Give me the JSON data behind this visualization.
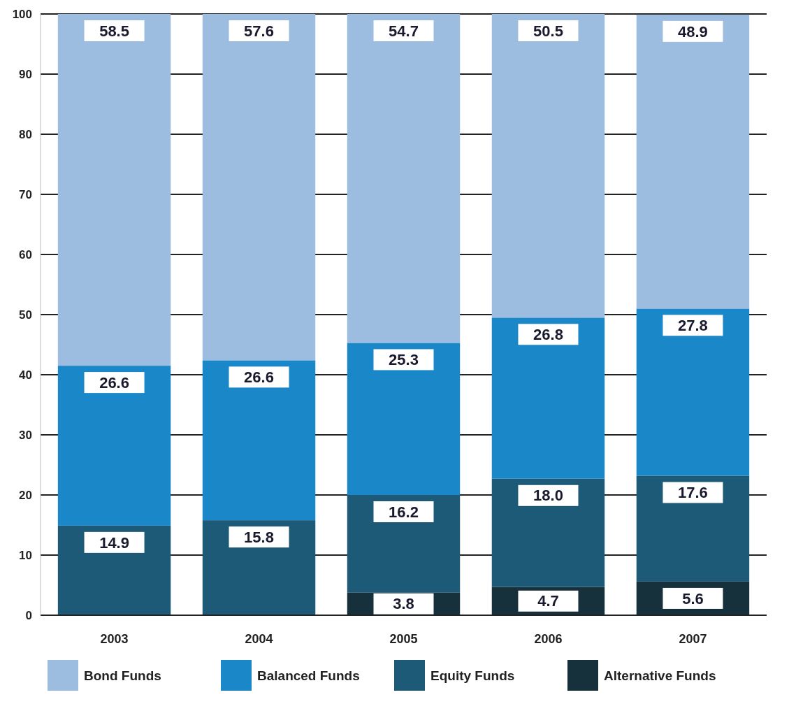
{
  "chart_data": {
    "type": "bar",
    "stacked": true,
    "categories": [
      "2003",
      "2004",
      "2005",
      "2006",
      "2007"
    ],
    "series": [
      {
        "name": "Alternative Funds",
        "color": "#16303c",
        "values": [
          null,
          null,
          3.8,
          4.7,
          5.6
        ],
        "value_labels": [
          null,
          null,
          "3.8",
          "4.7",
          "5.6"
        ]
      },
      {
        "name": "Equity Funds",
        "color": "#1d5a78",
        "values": [
          14.9,
          15.8,
          16.2,
          18.0,
          17.6
        ],
        "value_labels": [
          "14.9",
          "15.8",
          "16.2",
          "18.0",
          "17.6"
        ]
      },
      {
        "name": "Balanced Funds",
        "color": "#1a87c9",
        "values": [
          26.6,
          26.6,
          25.3,
          26.8,
          27.8
        ],
        "value_labels": [
          "26.6",
          "26.6",
          "25.3",
          "26.8",
          "27.8"
        ]
      },
      {
        "name": "Bond Funds",
        "color": "#9dbde0",
        "values": [
          58.5,
          57.6,
          54.7,
          50.5,
          48.9
        ],
        "value_labels": [
          "58.5",
          "57.6",
          "54.7",
          "50.5",
          "48.9"
        ]
      }
    ],
    "ylim": [
      0,
      100
    ],
    "yticks": [
      0,
      10,
      20,
      30,
      40,
      50,
      60,
      70,
      80,
      90,
      100
    ],
    "grid": "y",
    "legend": "bottom"
  }
}
